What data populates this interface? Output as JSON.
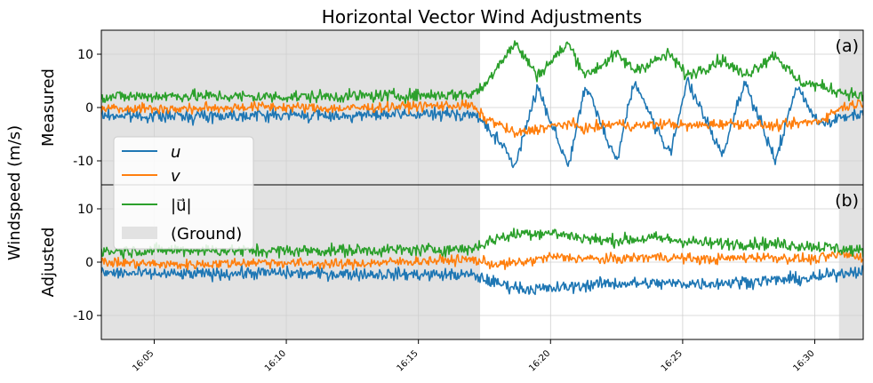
{
  "chart_data": {
    "type": "line",
    "title": "Horizontal Vector Wind Adjustments",
    "ylabel": "Windspeed (m/s)",
    "x_start": "16:03:00",
    "x_end": "16:31:50",
    "x_tick_labels": [
      "16:05",
      "16:10",
      "16:15",
      "16:20",
      "16:25",
      "16:30"
    ],
    "x_tick_times": [
      "16:05:00",
      "16:10:00",
      "16:15:00",
      "16:20:00",
      "16:25:00",
      "16:30:00"
    ],
    "ylim": [
      -14.5,
      14.5
    ],
    "y_ticks": [
      -10,
      0,
      10
    ],
    "grid": true,
    "legend_location": "lower-left of panel (a)",
    "ground_intervals": [
      [
        "16:03:00",
        "16:17:20"
      ],
      [
        "16:30:55",
        "16:31:50"
      ]
    ],
    "legend": [
      {
        "label": "u",
        "color": "#1f77b4",
        "kind": "line"
      },
      {
        "label": "v",
        "color": "#ff7f0e",
        "kind": "line"
      },
      {
        "label": "|u⃗|",
        "color": "#2ca02c",
        "kind": "line"
      },
      {
        "label": "(Ground)",
        "color": "#e2e2e2",
        "kind": "patch"
      }
    ],
    "panels": [
      {
        "tag": "(a)",
        "ylabel": "Measured",
        "series": [
          {
            "name": "u",
            "color": "#1f77b4",
            "x": [
              "16:03",
              "16:06",
              "16:09",
              "16:12",
              "16:15",
              "16:17",
              "16:17:30",
              "16:18",
              "16:18:40",
              "16:19:30",
              "16:20:40",
              "16:21:20",
              "16:22:30",
              "16:23:10",
              "16:24:30",
              "16:25:10",
              "16:26:30",
              "16:27:20",
              "16:28:30",
              "16:29:20",
              "16:30:10",
              "16:31",
              "16:31:50"
            ],
            "values": [
              -1.5,
              -1.6,
              -1.4,
              -1.5,
              -1.3,
              -1.2,
              -3,
              -6,
              -11,
              4,
              -11,
              4,
              -10,
              5,
              -9,
              5,
              -9,
              5,
              -10,
              4,
              -3,
              -2,
              -1
            ]
          },
          {
            "name": "v",
            "color": "#ff7f0e",
            "x": [
              "16:03",
              "16:06",
              "16:09",
              "16:12",
              "16:15",
              "16:17",
              "16:17:30",
              "16:18",
              "16:18:40",
              "16:19:30",
              "16:20:40",
              "16:21:20",
              "16:22:30",
              "16:23:10",
              "16:24:30",
              "16:25:10",
              "16:26:30",
              "16:27:20",
              "16:28:30",
              "16:29:20",
              "16:30:10",
              "16:31",
              "16:31:50"
            ],
            "values": [
              0,
              -0.3,
              0.2,
              -0.2,
              0.3,
              0.4,
              -2,
              -3,
              -5,
              -4,
              -3,
              -4,
              -3,
              -3.5,
              -3,
              -3.5,
              -3,
              -3,
              -3.5,
              -3,
              -2.5,
              0,
              1
            ]
          },
          {
            "name": "|u⃗|",
            "color": "#2ca02c",
            "x": [
              "16:03",
              "16:06",
              "16:09",
              "16:12",
              "16:15",
              "16:17",
              "16:17:30",
              "16:18",
              "16:18:40",
              "16:19:30",
              "16:20:40",
              "16:21:20",
              "16:22:30",
              "16:23:10",
              "16:24:30",
              "16:25:10",
              "16:26:30",
              "16:27:20",
              "16:28:30",
              "16:29:20",
              "16:30:10",
              "16:31",
              "16:31:50"
            ],
            "values": [
              2,
              2.2,
              2,
              2.1,
              2.3,
              2.5,
              4,
              8,
              12,
              6,
              12,
              6,
              10,
              7,
              10,
              6,
              9,
              6,
              10,
              5,
              4,
              3,
              2
            ]
          }
        ]
      },
      {
        "tag": "(b)",
        "ylabel": "Adjusted",
        "series": [
          {
            "name": "u",
            "color": "#1f77b4",
            "x": [
              "16:03",
              "16:06",
              "16:09",
              "16:12",
              "16:15",
              "16:17",
              "16:18",
              "16:19",
              "16:20",
              "16:22",
              "16:24",
              "16:26",
              "16:28",
              "16:30",
              "16:31",
              "16:31:50"
            ],
            "values": [
              -2,
              -2.3,
              -2,
              -2.2,
              -2.3,
              -2.4,
              -4,
              -5,
              -5,
              -4,
              -4,
              -4,
              -3.5,
              -3,
              -2,
              -1.5
            ]
          },
          {
            "name": "v",
            "color": "#ff7f0e",
            "x": [
              "16:03",
              "16:06",
              "16:09",
              "16:12",
              "16:15",
              "16:17",
              "16:18",
              "16:19",
              "16:20",
              "16:22",
              "16:24",
              "16:26",
              "16:28",
              "16:30",
              "16:31",
              "16:31:50"
            ],
            "values": [
              0,
              -0.5,
              0,
              -0.4,
              0.2,
              0.5,
              -0.5,
              0,
              1,
              0.5,
              1,
              0.5,
              1,
              0.5,
              1.5,
              1
            ]
          },
          {
            "name": "|u⃗|",
            "color": "#2ca02c",
            "x": [
              "16:03",
              "16:06",
              "16:09",
              "16:12",
              "16:15",
              "16:17",
              "16:18",
              "16:19",
              "16:20",
              "16:22",
              "16:24",
              "16:26",
              "16:28",
              "16:30",
              "16:31",
              "16:31:50"
            ],
            "values": [
              2,
              2.3,
              2.1,
              2.2,
              2.3,
              2.5,
              4.5,
              5.5,
              5.5,
              4,
              4.5,
              3.5,
              3.5,
              3,
              2.5,
              2
            ]
          }
        ]
      }
    ]
  }
}
